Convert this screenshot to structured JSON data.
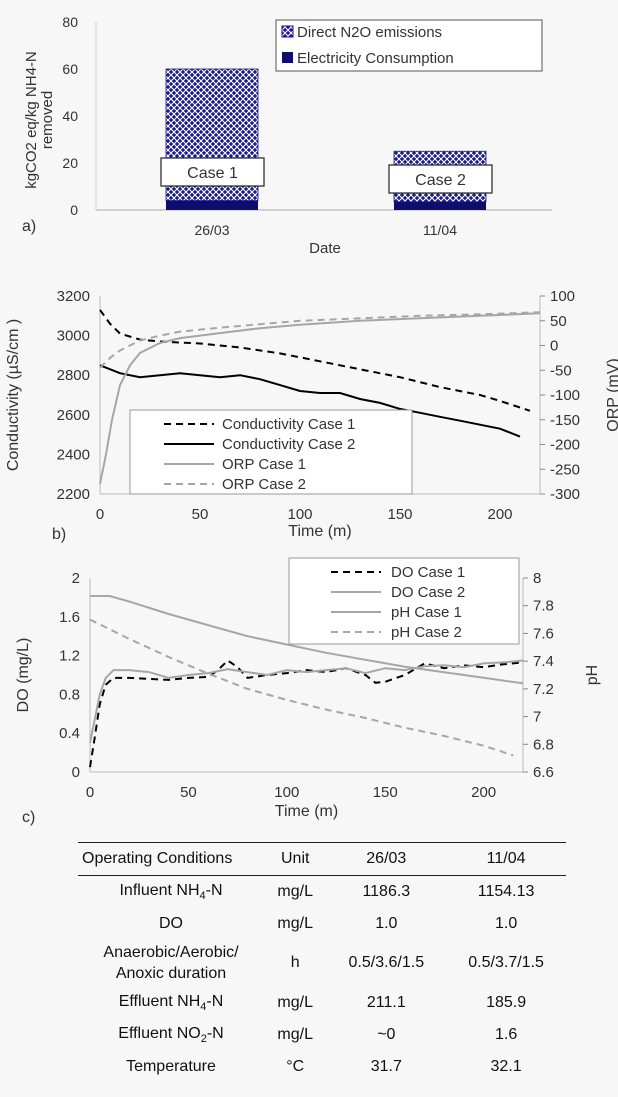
{
  "chart_data": [
    {
      "type": "bar",
      "panel_label": "a)",
      "categories": [
        "26/03",
        "11/04"
      ],
      "series": [
        {
          "name": "Direct N2O emissions",
          "values": [
            56,
            21.5
          ],
          "color": "#1a1a8c",
          "pattern": "crosshatch"
        },
        {
          "name": "Electricity Consumption",
          "values": [
            4,
            3.5
          ],
          "color": "#0d0d6e"
        }
      ],
      "annotations": [
        "Case 1",
        "Case 2"
      ],
      "xlabel": "Date",
      "ylabel": "kgCO2 eq/kg NH4-N removed",
      "ylim": [
        0,
        80
      ],
      "yticks": [
        0,
        20,
        40,
        60,
        80
      ],
      "legend": "top-right"
    },
    {
      "type": "line",
      "panel_label": "b)",
      "xlabel": "Time (m)",
      "ylabel": "Conductivity (µS/cm )",
      "y2label": "ORP (mV)",
      "xlim": [
        0,
        220
      ],
      "ylim": [
        2200,
        3200
      ],
      "y2lim": [
        -300,
        100
      ],
      "xticks": [
        0,
        50,
        100,
        150,
        200
      ],
      "yticks": [
        2200,
        2400,
        2600,
        2800,
        3000,
        3200
      ],
      "y2ticks": [
        -300,
        -250,
        -200,
        -150,
        -100,
        -50,
        0,
        50,
        100
      ],
      "legend": "bottom-left",
      "series": [
        {
          "name": "Conductivity Case 1",
          "axis": "left",
          "style": "dashed-black",
          "x": [
            0,
            5,
            10,
            20,
            30,
            50,
            70,
            90,
            110,
            130,
            150,
            170,
            190,
            200,
            215
          ],
          "y": [
            3130,
            3060,
            3010,
            2980,
            2970,
            2960,
            2940,
            2910,
            2870,
            2830,
            2790,
            2740,
            2700,
            2670,
            2620
          ]
        },
        {
          "name": "Conductivity Case 2",
          "axis": "left",
          "style": "solid-black",
          "x": [
            0,
            10,
            20,
            30,
            40,
            50,
            60,
            70,
            80,
            90,
            100,
            110,
            120,
            130,
            140,
            150,
            160,
            170,
            180,
            190,
            200,
            210
          ],
          "y": [
            2850,
            2810,
            2790,
            2800,
            2810,
            2800,
            2790,
            2800,
            2780,
            2750,
            2720,
            2710,
            2710,
            2680,
            2660,
            2630,
            2610,
            2590,
            2570,
            2550,
            2530,
            2490
          ]
        },
        {
          "name": "ORP Case 1",
          "axis": "right",
          "style": "solid-gray",
          "x": [
            0,
            3,
            6,
            10,
            15,
            20,
            30,
            40,
            60,
            80,
            100,
            130,
            160,
            190,
            220
          ],
          "y": [
            -280,
            -220,
            -150,
            -80,
            -40,
            -15,
            5,
            15,
            25,
            35,
            42,
            50,
            55,
            60,
            65
          ]
        },
        {
          "name": "ORP Case 2",
          "axis": "right",
          "style": "dashed-gray",
          "x": [
            0,
            5,
            10,
            20,
            30,
            40,
            60,
            80,
            100,
            130,
            160,
            190,
            220
          ],
          "y": [
            -45,
            -25,
            -10,
            10,
            20,
            28,
            36,
            43,
            50,
            55,
            60,
            63,
            67
          ]
        }
      ]
    },
    {
      "type": "line",
      "panel_label": "c)",
      "xlabel": "Time (m)",
      "ylabel": "DO (mg/L)",
      "y2label": "pH",
      "xlim": [
        0,
        220
      ],
      "ylim": [
        0,
        2
      ],
      "y2lim": [
        6.6,
        8
      ],
      "xticks": [
        0,
        50,
        100,
        150,
        200
      ],
      "yticks": [
        0,
        0.4,
        0.8,
        1.2,
        1.6,
        2
      ],
      "y2ticks": [
        6.6,
        6.8,
        7,
        7.2,
        7.4,
        7.6,
        7.8,
        8
      ],
      "legend": "top-right",
      "series": [
        {
          "name": "DO Case 1",
          "axis": "left",
          "style": "dashed-black",
          "x": [
            0,
            2,
            5,
            8,
            12,
            20,
            30,
            40,
            50,
            60,
            65,
            70,
            75,
            80,
            90,
            100,
            110,
            120,
            130,
            140,
            145,
            150,
            160,
            170,
            180,
            190,
            200,
            210,
            220
          ],
          "y": [
            0.05,
            0.3,
            0.7,
            0.9,
            0.97,
            0.97,
            0.96,
            0.95,
            0.97,
            0.98,
            1.05,
            1.15,
            1.08,
            0.97,
            1.0,
            1.02,
            1.05,
            1.03,
            1.07,
            1.0,
            0.92,
            0.93,
            1.0,
            1.12,
            1.07,
            1.1,
            1.08,
            1.11,
            1.13
          ]
        },
        {
          "name": "DO Case 2",
          "axis": "left",
          "style": "solid-gray",
          "x": [
            0,
            2,
            5,
            8,
            12,
            20,
            30,
            40,
            50,
            60,
            70,
            80,
            90,
            100,
            110,
            120,
            130,
            140,
            150,
            160,
            170,
            180,
            190,
            200,
            210,
            220
          ],
          "y": [
            0.3,
            0.5,
            0.8,
            0.97,
            1.05,
            1.05,
            1.03,
            0.97,
            1.0,
            1.02,
            1.06,
            1.03,
            1.0,
            1.05,
            1.03,
            1.05,
            1.07,
            1.02,
            1.07,
            1.05,
            1.09,
            1.1,
            1.08,
            1.12,
            1.13,
            1.15
          ]
        },
        {
          "name": "pH Case 1",
          "axis": "right",
          "style": "solid-gray",
          "x": [
            0,
            10,
            20,
            40,
            60,
            80,
            100,
            120,
            140,
            160,
            180,
            200,
            220
          ],
          "y": [
            7.87,
            7.87,
            7.83,
            7.74,
            7.66,
            7.58,
            7.52,
            7.46,
            7.41,
            7.36,
            7.32,
            7.28,
            7.24
          ]
        },
        {
          "name": "pH Case 2",
          "axis": "right",
          "style": "dashed-gray",
          "x": [
            0,
            20,
            40,
            60,
            80,
            100,
            120,
            140,
            160,
            180,
            200,
            215
          ],
          "y": [
            7.7,
            7.56,
            7.43,
            7.31,
            7.2,
            7.12,
            7.05,
            6.99,
            6.92,
            6.86,
            6.79,
            6.72
          ]
        }
      ]
    }
  ],
  "table": {
    "headers": [
      "Operating Conditions",
      "Unit",
      "26/03",
      "11/04"
    ],
    "rows": [
      {
        "condition": "Influent NH",
        "sub": "4",
        "suffix": "-N",
        "unit": "mg/L",
        "v1": "1186.3",
        "v2": "1154.13"
      },
      {
        "condition": "DO",
        "sub": "",
        "suffix": "",
        "unit": "mg/L",
        "v1": "1.0",
        "v2": "1.0"
      },
      {
        "condition": "Anaerobic/Aerobic/ Anoxic duration",
        "sub": "",
        "suffix": "",
        "unit": "h",
        "v1": "0.5/3.6/1.5",
        "v2": "0.5/3.7/1.5"
      },
      {
        "condition": "Effluent NH",
        "sub": "4",
        "suffix": "-N",
        "unit": "mg/L",
        "v1": "211.1",
        "v2": "185.9"
      },
      {
        "condition": "Effluent NO",
        "sub": "2",
        "suffix": "-N",
        "unit": "mg/L",
        "v1": "~0",
        "v2": "1.6"
      },
      {
        "condition": "Temperature",
        "sub": "",
        "suffix": "",
        "unit": "°C",
        "v1": "31.7",
        "v2": "32.1"
      }
    ]
  }
}
